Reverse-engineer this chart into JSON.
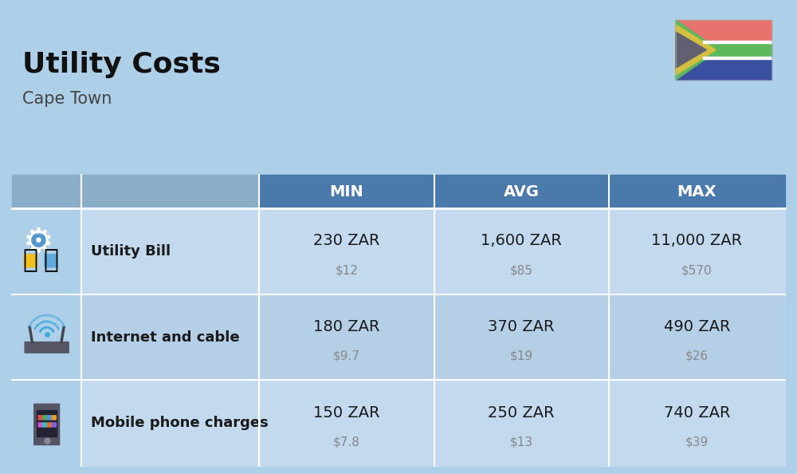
{
  "title": "Utility Costs",
  "subtitle": "Cape Town",
  "background_color": "#aecfe8",
  "header_color": "#4a7aab",
  "header_text_color": "#ffffff",
  "row_color_1": "#c2d9ee",
  "row_color_2": "#b5cfe6",
  "icon_col_color": "#aecfe8",
  "columns": [
    "MIN",
    "AVG",
    "MAX"
  ],
  "rows": [
    {
      "label": "Utility Bill",
      "min_zar": "230 ZAR",
      "min_usd": "$12",
      "avg_zar": "1,600 ZAR",
      "avg_usd": "$85",
      "max_zar": "11,000 ZAR",
      "max_usd": "$570"
    },
    {
      "label": "Internet and cable",
      "min_zar": "180 ZAR",
      "min_usd": "$9.7",
      "avg_zar": "370 ZAR",
      "avg_usd": "$19",
      "max_zar": "490 ZAR",
      "max_usd": "$26"
    },
    {
      "label": "Mobile phone charges",
      "min_zar": "150 ZAR",
      "min_usd": "$7.8",
      "avg_zar": "250 ZAR",
      "avg_usd": "$13",
      "max_zar": "740 ZAR",
      "max_usd": "$39"
    }
  ],
  "cell_text_color": "#1a1a1a",
  "usd_text_color": "#888888",
  "label_fontsize": 13,
  "value_fontsize": 14,
  "usd_fontsize": 11,
  "header_fontsize": 14,
  "title_fontsize": 26,
  "subtitle_fontsize": 15
}
